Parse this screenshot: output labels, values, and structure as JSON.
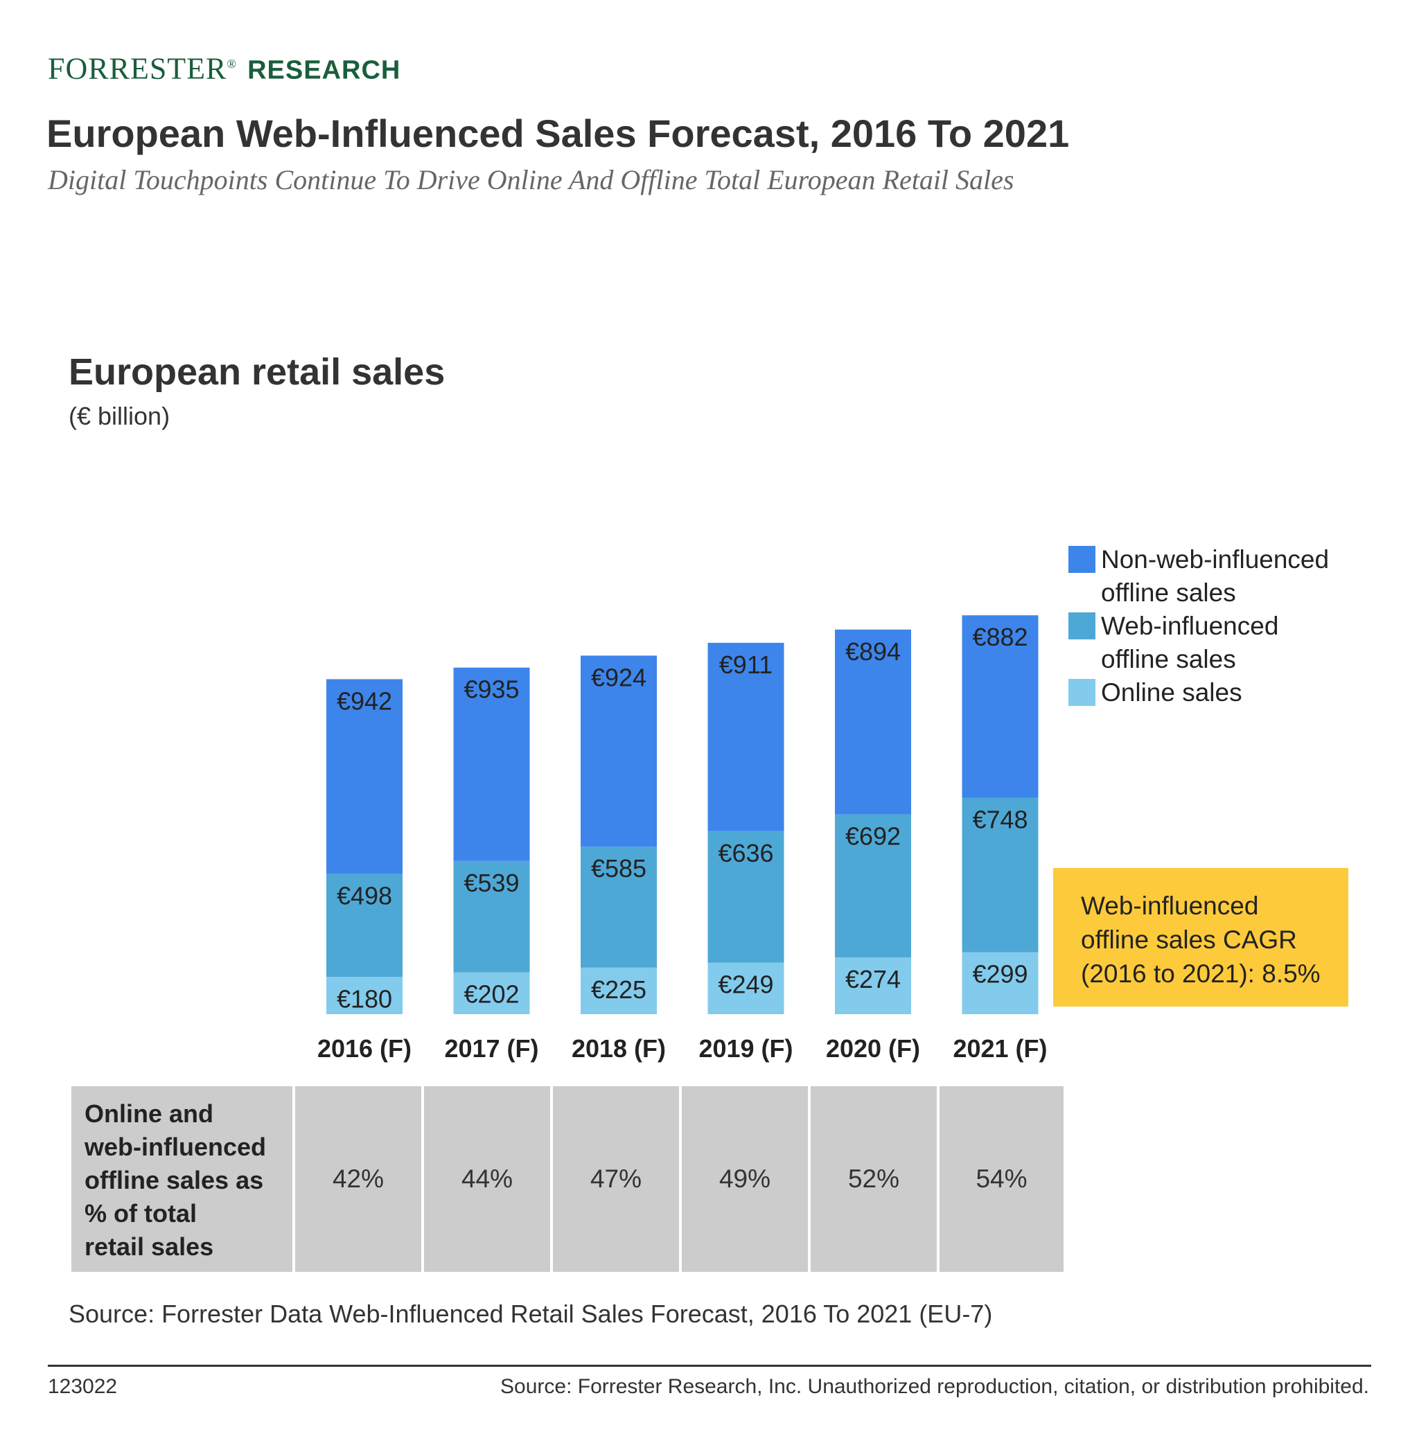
{
  "brand": {
    "name": "FORRESTER",
    "reg": "®",
    "sub": "RESEARCH"
  },
  "title": "European Web-Influenced Sales Forecast, 2016 To 2021",
  "subtitle": "Digital Touchpoints Continue To Drive Online And Offline Total European Retail Sales",
  "colors": {
    "non_web": "#3d85ea",
    "web": "#4ea8d6",
    "online": "#82cbec",
    "cagr_box": "#fdca3b",
    "brand": "#1a5e3c"
  },
  "chart_data": {
    "type": "bar",
    "stacked": true,
    "title": "European retail sales",
    "unit": "(€ billion)",
    "categories": [
      "2016 (F)",
      "2017 (F)",
      "2018 (F)",
      "2019 (F)",
      "2020 (F)",
      "2021 (F)"
    ],
    "series": [
      {
        "name": "Online sales",
        "values": [
          180,
          202,
          225,
          249,
          274,
          299
        ],
        "labels": [
          "€180",
          "€202",
          "€225",
          "€249",
          "€274",
          "€299"
        ]
      },
      {
        "name": "Web-influenced offline sales",
        "values": [
          498,
          539,
          585,
          636,
          692,
          748
        ],
        "labels": [
          "€498",
          "€539",
          "€585",
          "€636",
          "€692",
          "€748"
        ]
      },
      {
        "name": "Non-web-influenced offline sales",
        "values": [
          942,
          935,
          924,
          911,
          894,
          882
        ],
        "labels": [
          "€942",
          "€935",
          "€924",
          "€911",
          "€894",
          "€882"
        ]
      }
    ],
    "legend": {
      "position": "right",
      "items": [
        {
          "name": "Non-web-influenced offline sales",
          "line1": "Non-web-influenced",
          "line2": "offline sales"
        },
        {
          "name": "Web-influenced offline sales",
          "line1": "Web-influenced",
          "line2": "offline sales"
        },
        {
          "name": "Online sales",
          "line1": "Online sales",
          "line2": ""
        }
      ]
    },
    "annotation": {
      "line1": "Web-influenced",
      "line2": "offline sales CAGR",
      "line3": "(2016 to 2021): 8.5%"
    },
    "grid": false
  },
  "table": {
    "row_label": [
      "Online and",
      "web-influenced",
      "offline sales as",
      "% of total",
      "retail sales"
    ],
    "values": [
      "42%",
      "44%",
      "47%",
      "49%",
      "52%",
      "54%"
    ]
  },
  "source": "Source: Forrester Data Web-Influenced Retail Sales Forecast, 2016 To 2021 (EU-7)",
  "footer": {
    "id": "123022",
    "note": "Source: Forrester Research, Inc. Unauthorized reproduction, citation, or distribution prohibited."
  }
}
